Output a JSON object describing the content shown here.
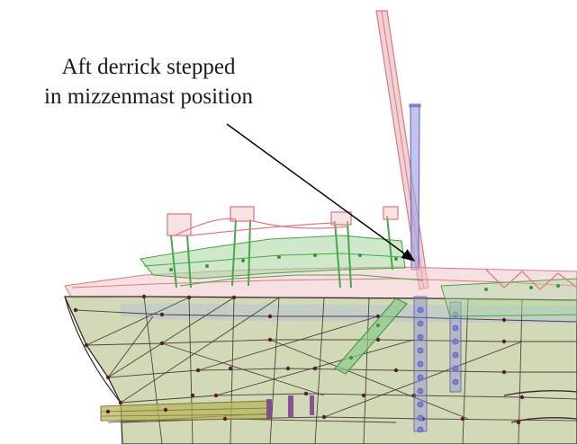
{
  "annotation": {
    "line1": "Aft derrick stepped",
    "line2": "in mizzenmast position"
  },
  "colors": {
    "hull_fill": "#c9d2a9",
    "hull_edge": "#3a2a2a",
    "vertex": "#5a1c34",
    "red_element": "#e07b86",
    "green_element": "#4aa64a",
    "blue_element": "#7f7fd6",
    "derrick_red": "#e39a9f",
    "derrick_blue": "#8c8ed8",
    "pointer": "#000000"
  }
}
